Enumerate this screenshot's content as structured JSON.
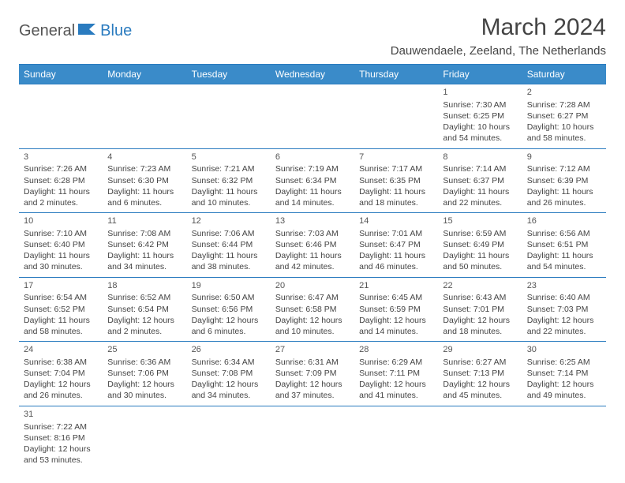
{
  "logo": {
    "general": "General",
    "blue": "Blue"
  },
  "title": "March 2024",
  "location": "Dauwendaele, Zeeland, The Netherlands",
  "dayHeaders": [
    "Sunday",
    "Monday",
    "Tuesday",
    "Wednesday",
    "Thursday",
    "Friday",
    "Saturday"
  ],
  "colors": {
    "headerBg": "#3a8bc9",
    "headerBorder": "#2a7bbf",
    "text": "#444444",
    "logoBlue": "#2a7bbf"
  },
  "weeks": [
    [
      null,
      null,
      null,
      null,
      null,
      {
        "n": "1",
        "sr": "7:30 AM",
        "ss": "6:25 PM",
        "dl": "10 hours and 54 minutes."
      },
      {
        "n": "2",
        "sr": "7:28 AM",
        "ss": "6:27 PM",
        "dl": "10 hours and 58 minutes."
      }
    ],
    [
      {
        "n": "3",
        "sr": "7:26 AM",
        "ss": "6:28 PM",
        "dl": "11 hours and 2 minutes."
      },
      {
        "n": "4",
        "sr": "7:23 AM",
        "ss": "6:30 PM",
        "dl": "11 hours and 6 minutes."
      },
      {
        "n": "5",
        "sr": "7:21 AM",
        "ss": "6:32 PM",
        "dl": "11 hours and 10 minutes."
      },
      {
        "n": "6",
        "sr": "7:19 AM",
        "ss": "6:34 PM",
        "dl": "11 hours and 14 minutes."
      },
      {
        "n": "7",
        "sr": "7:17 AM",
        "ss": "6:35 PM",
        "dl": "11 hours and 18 minutes."
      },
      {
        "n": "8",
        "sr": "7:14 AM",
        "ss": "6:37 PM",
        "dl": "11 hours and 22 minutes."
      },
      {
        "n": "9",
        "sr": "7:12 AM",
        "ss": "6:39 PM",
        "dl": "11 hours and 26 minutes."
      }
    ],
    [
      {
        "n": "10",
        "sr": "7:10 AM",
        "ss": "6:40 PM",
        "dl": "11 hours and 30 minutes."
      },
      {
        "n": "11",
        "sr": "7:08 AM",
        "ss": "6:42 PM",
        "dl": "11 hours and 34 minutes."
      },
      {
        "n": "12",
        "sr": "7:06 AM",
        "ss": "6:44 PM",
        "dl": "11 hours and 38 minutes."
      },
      {
        "n": "13",
        "sr": "7:03 AM",
        "ss": "6:46 PM",
        "dl": "11 hours and 42 minutes."
      },
      {
        "n": "14",
        "sr": "7:01 AM",
        "ss": "6:47 PM",
        "dl": "11 hours and 46 minutes."
      },
      {
        "n": "15",
        "sr": "6:59 AM",
        "ss": "6:49 PM",
        "dl": "11 hours and 50 minutes."
      },
      {
        "n": "16",
        "sr": "6:56 AM",
        "ss": "6:51 PM",
        "dl": "11 hours and 54 minutes."
      }
    ],
    [
      {
        "n": "17",
        "sr": "6:54 AM",
        "ss": "6:52 PM",
        "dl": "11 hours and 58 minutes."
      },
      {
        "n": "18",
        "sr": "6:52 AM",
        "ss": "6:54 PM",
        "dl": "12 hours and 2 minutes."
      },
      {
        "n": "19",
        "sr": "6:50 AM",
        "ss": "6:56 PM",
        "dl": "12 hours and 6 minutes."
      },
      {
        "n": "20",
        "sr": "6:47 AM",
        "ss": "6:58 PM",
        "dl": "12 hours and 10 minutes."
      },
      {
        "n": "21",
        "sr": "6:45 AM",
        "ss": "6:59 PM",
        "dl": "12 hours and 14 minutes."
      },
      {
        "n": "22",
        "sr": "6:43 AM",
        "ss": "7:01 PM",
        "dl": "12 hours and 18 minutes."
      },
      {
        "n": "23",
        "sr": "6:40 AM",
        "ss": "7:03 PM",
        "dl": "12 hours and 22 minutes."
      }
    ],
    [
      {
        "n": "24",
        "sr": "6:38 AM",
        "ss": "7:04 PM",
        "dl": "12 hours and 26 minutes."
      },
      {
        "n": "25",
        "sr": "6:36 AM",
        "ss": "7:06 PM",
        "dl": "12 hours and 30 minutes."
      },
      {
        "n": "26",
        "sr": "6:34 AM",
        "ss": "7:08 PM",
        "dl": "12 hours and 34 minutes."
      },
      {
        "n": "27",
        "sr": "6:31 AM",
        "ss": "7:09 PM",
        "dl": "12 hours and 37 minutes."
      },
      {
        "n": "28",
        "sr": "6:29 AM",
        "ss": "7:11 PM",
        "dl": "12 hours and 41 minutes."
      },
      {
        "n": "29",
        "sr": "6:27 AM",
        "ss": "7:13 PM",
        "dl": "12 hours and 45 minutes."
      },
      {
        "n": "30",
        "sr": "6:25 AM",
        "ss": "7:14 PM",
        "dl": "12 hours and 49 minutes."
      }
    ],
    [
      {
        "n": "31",
        "sr": "7:22 AM",
        "ss": "8:16 PM",
        "dl": "12 hours and 53 minutes."
      },
      null,
      null,
      null,
      null,
      null,
      null
    ]
  ],
  "labels": {
    "sunrise": "Sunrise:",
    "sunset": "Sunset:",
    "daylight": "Daylight:"
  }
}
